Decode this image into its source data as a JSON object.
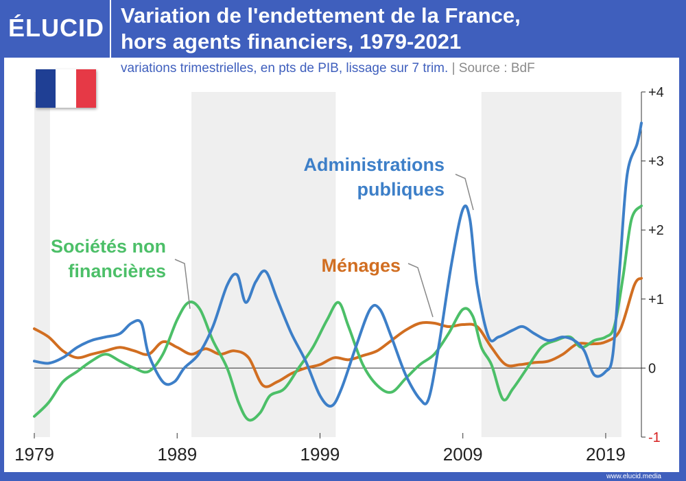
{
  "header": {
    "logo": "ÉLUCID",
    "title_line1": "Variation de l'endettement de la France,",
    "title_line2": "hors agents financiers, 1979-2021"
  },
  "subtitle": {
    "main": "variations trimestrielles, en pts de PIB, lissage sur 7 trim.",
    "separator": " | ",
    "source": "Source : BdF"
  },
  "flag": {
    "colors": [
      "#1f3f94",
      "#ffffff",
      "#e63946"
    ]
  },
  "footer": {
    "url": "www.elucid.media"
  },
  "colors": {
    "background": "#3f5fbd",
    "recession_band": "#efefef",
    "administrations": "#3d7fc8",
    "societes": "#4cbf68",
    "menages": "#d16e21",
    "negative_tick": "#d62020"
  },
  "chart_data": {
    "type": "line",
    "title": "Variation de l'endettement de la France, hors agents financiers, 1979-2021",
    "subtitle": "variations trimestrielles, en pts de PIB, lissage sur 7 trim.",
    "xlim": [
      1979,
      2021.5
    ],
    "ylim": [
      -1,
      4
    ],
    "x_ticks": [
      {
        "value": 1979,
        "label": "1979"
      },
      {
        "value": 1989,
        "label": "1989"
      },
      {
        "value": 1999,
        "label": "1999"
      },
      {
        "value": 2009,
        "label": "2009"
      },
      {
        "value": 2019,
        "label": "2019"
      }
    ],
    "y_ticks": [
      {
        "value": 4,
        "label": "+4"
      },
      {
        "value": 3,
        "label": "+3"
      },
      {
        "value": 2,
        "label": "+2"
      },
      {
        "value": 1,
        "label": "+1"
      },
      {
        "value": 0,
        "label": "0"
      },
      {
        "value": -1,
        "label": "-1"
      }
    ],
    "shaded_periods": [
      [
        1979,
        1980.1
      ],
      [
        1990,
        2000.1
      ],
      [
        2010.3,
        2020.1
      ]
    ],
    "series": [
      {
        "name": "Administrations publiques",
        "label_lines": [
          "Administrations",
          "publiques"
        ],
        "color": "#3d7fc8",
        "points": [
          [
            1979,
            0.1
          ],
          [
            1980,
            0.07
          ],
          [
            1981,
            0.15
          ],
          [
            1982,
            0.3
          ],
          [
            1983,
            0.4
          ],
          [
            1984,
            0.45
          ],
          [
            1985,
            0.5
          ],
          [
            1985.8,
            0.65
          ],
          [
            1986.5,
            0.65
          ],
          [
            1987,
            0.2
          ],
          [
            1988,
            -0.2
          ],
          [
            1988.8,
            -0.2
          ],
          [
            1989.5,
            0
          ],
          [
            1990.5,
            0.2
          ],
          [
            1991.5,
            0.6
          ],
          [
            1992.5,
            1.2
          ],
          [
            1993.2,
            1.35
          ],
          [
            1993.8,
            0.95
          ],
          [
            1994.5,
            1.25
          ],
          [
            1995.2,
            1.4
          ],
          [
            1996,
            1.0
          ],
          [
            1997,
            0.5
          ],
          [
            1998,
            0.1
          ],
          [
            1999,
            -0.4
          ],
          [
            1999.8,
            -0.55
          ],
          [
            2000.5,
            -0.3
          ],
          [
            2001.5,
            0.3
          ],
          [
            2002.5,
            0.85
          ],
          [
            2003.2,
            0.85
          ],
          [
            2004,
            0.45
          ],
          [
            2005,
            -0.1
          ],
          [
            2006,
            -0.45
          ],
          [
            2006.6,
            -0.45
          ],
          [
            2007.3,
            0.3
          ],
          [
            2008.2,
            1.5
          ],
          [
            2009,
            2.3
          ],
          [
            2009.5,
            2.15
          ],
          [
            2010,
            1.2
          ],
          [
            2010.8,
            0.45
          ],
          [
            2011.5,
            0.45
          ],
          [
            2012.5,
            0.55
          ],
          [
            2013.2,
            0.6
          ],
          [
            2014,
            0.5
          ],
          [
            2015,
            0.4
          ],
          [
            2016,
            0.45
          ],
          [
            2016.8,
            0.4
          ],
          [
            2017.5,
            0.25
          ],
          [
            2018.2,
            -0.1
          ],
          [
            2019,
            -0.05
          ],
          [
            2019.5,
            0.2
          ],
          [
            2020,
            1.5
          ],
          [
            2020.5,
            2.8
          ],
          [
            2021.2,
            3.25
          ],
          [
            2021.5,
            3.55
          ]
        ]
      },
      {
        "name": "Sociétés non financières",
        "label_lines": [
          "Sociétés non",
          "financières"
        ],
        "color": "#4cbf68",
        "points": [
          [
            1979,
            -0.7
          ],
          [
            1980,
            -0.5
          ],
          [
            1981,
            -0.2
          ],
          [
            1982,
            -0.05
          ],
          [
            1983,
            0.1
          ],
          [
            1984,
            0.2
          ],
          [
            1985,
            0.1
          ],
          [
            1986,
            0
          ],
          [
            1987,
            -0.05
          ],
          [
            1988,
            0.2
          ],
          [
            1989,
            0.7
          ],
          [
            1989.8,
            0.95
          ],
          [
            1990.6,
            0.85
          ],
          [
            1991.5,
            0.4
          ],
          [
            1992.5,
            0
          ],
          [
            1993.3,
            -0.5
          ],
          [
            1994,
            -0.75
          ],
          [
            1994.8,
            -0.65
          ],
          [
            1995.5,
            -0.4
          ],
          [
            1996.5,
            -0.3
          ],
          [
            1997.5,
            0
          ],
          [
            1998.5,
            0.3
          ],
          [
            1999.5,
            0.7
          ],
          [
            2000.3,
            0.95
          ],
          [
            2001,
            0.6
          ],
          [
            2002,
            0.05
          ],
          [
            2003,
            -0.25
          ],
          [
            2004,
            -0.35
          ],
          [
            2005,
            -0.15
          ],
          [
            2006,
            0.05
          ],
          [
            2007,
            0.2
          ],
          [
            2008,
            0.5
          ],
          [
            2009,
            0.85
          ],
          [
            2009.7,
            0.75
          ],
          [
            2010.3,
            0.3
          ],
          [
            2011,
            0.05
          ],
          [
            2011.8,
            -0.45
          ],
          [
            2012.5,
            -0.3
          ],
          [
            2013.5,
            0
          ],
          [
            2014.5,
            0.3
          ],
          [
            2015.5,
            0.4
          ],
          [
            2016.5,
            0.45
          ],
          [
            2017.3,
            0.3
          ],
          [
            2018.2,
            0.4
          ],
          [
            2019,
            0.45
          ],
          [
            2019.6,
            0.6
          ],
          [
            2020.2,
            1.3
          ],
          [
            2020.8,
            2.15
          ],
          [
            2021.5,
            2.35
          ]
        ]
      },
      {
        "name": "Ménages",
        "label_lines": [
          "Ménages"
        ],
        "color": "#d16e21",
        "points": [
          [
            1979,
            0.57
          ],
          [
            1980,
            0.45
          ],
          [
            1981,
            0.25
          ],
          [
            1982,
            0.15
          ],
          [
            1983,
            0.2
          ],
          [
            1984,
            0.25
          ],
          [
            1985,
            0.3
          ],
          [
            1986,
            0.25
          ],
          [
            1987,
            0.2
          ],
          [
            1988,
            0.38
          ],
          [
            1989,
            0.3
          ],
          [
            1990,
            0.2
          ],
          [
            1991,
            0.28
          ],
          [
            1992,
            0.2
          ],
          [
            1993,
            0.25
          ],
          [
            1994,
            0.15
          ],
          [
            1995,
            -0.25
          ],
          [
            1996,
            -0.2
          ],
          [
            1997,
            -0.08
          ],
          [
            1998,
            0
          ],
          [
            1999,
            0.05
          ],
          [
            2000,
            0.15
          ],
          [
            2001,
            0.12
          ],
          [
            2002,
            0.18
          ],
          [
            2003,
            0.25
          ],
          [
            2004,
            0.4
          ],
          [
            2005,
            0.55
          ],
          [
            2006,
            0.65
          ],
          [
            2007,
            0.65
          ],
          [
            2008,
            0.6
          ],
          [
            2009,
            0.63
          ],
          [
            2010,
            0.6
          ],
          [
            2011,
            0.3
          ],
          [
            2012,
            0.05
          ],
          [
            2013,
            0.05
          ],
          [
            2014,
            0.08
          ],
          [
            2015,
            0.1
          ],
          [
            2016,
            0.2
          ],
          [
            2017,
            0.35
          ],
          [
            2018,
            0.35
          ],
          [
            2019,
            0.38
          ],
          [
            2020,
            0.55
          ],
          [
            2021,
            1.2
          ],
          [
            2021.5,
            1.3
          ]
        ]
      }
    ]
  }
}
